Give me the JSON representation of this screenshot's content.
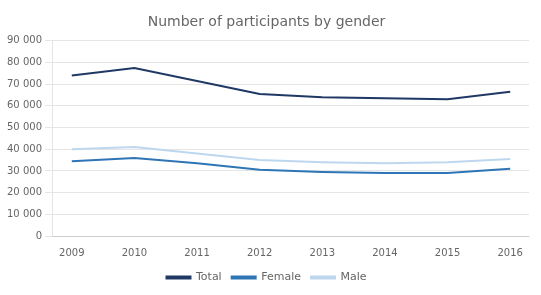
{
  "chart_data": {
    "type": "line",
    "title": "Number of participants by gender",
    "x": [
      2009,
      2010,
      2011,
      2012,
      2013,
      2014,
      2015,
      2016
    ],
    "xlim": [
      2008.7,
      2016.3
    ],
    "xticks": [
      2009,
      2010,
      2011,
      2012,
      2013,
      2014,
      2015,
      2016
    ],
    "series": [
      {
        "name": "Total",
        "color": "#1f3864",
        "values": [
          74000,
          77500,
          71500,
          65500,
          64000,
          63500,
          63000,
          66500
        ]
      },
      {
        "name": "Female",
        "color": "#2e75b6",
        "values": [
          34500,
          36000,
          33500,
          30500,
          29500,
          29000,
          29000,
          31000
        ]
      },
      {
        "name": "Male",
        "color": "#bdd7ee",
        "values": [
          40000,
          41000,
          38000,
          35000,
          34000,
          33500,
          34000,
          35500
        ]
      }
    ],
    "ylim": [
      0,
      90000
    ],
    "yticks": [
      0,
      {
        "value": 10000,
        "label": "10 000"
      },
      {
        "value": 20000,
        "label": "20 000"
      },
      {
        "value": 30000,
        "label": "30 000"
      },
      {
        "value": 40000,
        "label": "40 000"
      },
      {
        "value": 50000,
        "label": "50 000"
      },
      {
        "value": 60000,
        "label": "60 000"
      },
      {
        "value": 70000,
        "label": "70 000"
      },
      {
        "value": 80000,
        "label": "80 000"
      },
      {
        "value": 90000,
        "label": "90 000"
      }
    ],
    "grid": "y",
    "legend": "bottom"
  }
}
